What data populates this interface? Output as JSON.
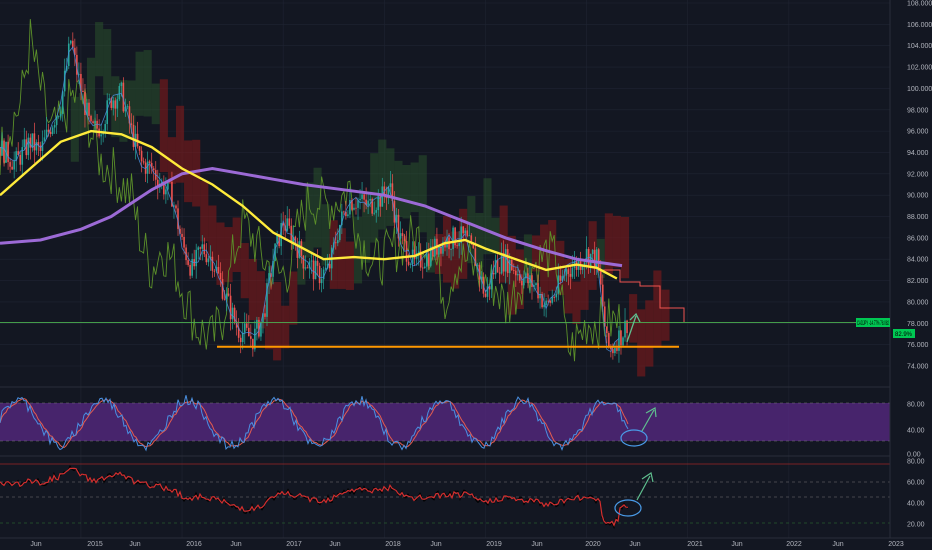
{
  "colors": {
    "background": "#131722",
    "grid": "#1f2432",
    "candle_up": "#26a69a",
    "candle_down": "#ef5350",
    "ma_fast": "#ffeb3b",
    "ma_slow": "#9c6ad6",
    "cloud_red": "#8b1a1a",
    "cloud_green": "#2e5e2e",
    "lagging_line": "#5b8f2a",
    "support_line": "#ff9800",
    "price_line": "#4caf50",
    "stoch_k": "#4a90e2",
    "stoch_d": "#e35b4f",
    "stoch_band": "#5a2a86",
    "rsi_line": "#d32f2f",
    "annotation_arrow": "#5fbf8f",
    "annotation_circle": "#4a9be8",
    "label_green": "#00c853"
  },
  "main_axis": {
    "labels": [
      "108.000",
      "106.000",
      "104.000",
      "102.000",
      "100.000",
      "98.000",
      "96.000",
      "94.000",
      "92.000",
      "90.000",
      "88.000",
      "86.000",
      "84.000",
      "82.000",
      "80.000",
      "78.000",
      "76.000",
      "74.000"
    ]
  },
  "price_labels": {
    "symbol_tag": "CADJPY -14.77% 78.082",
    "secondary_tag": "82.9%"
  },
  "stoch_axis": {
    "labels": [
      "80.00",
      "40.00",
      "0.00"
    ]
  },
  "rsi_axis": {
    "labels": [
      "80.00",
      "60.00",
      "40.00",
      "20.00"
    ]
  },
  "time_axis": {
    "labels": [
      "Jun",
      "2015",
      "Jun",
      "2016",
      "Jun",
      "2017",
      "Jun",
      "2018",
      "Jun",
      "2019",
      "Jun",
      "2020",
      "Jun",
      "2021",
      "Jun",
      "2022",
      "Jun",
      "2023"
    ]
  },
  "chart_data": {
    "type": "line",
    "symbol": "CADJPY",
    "xlim": [
      2014.2,
      2023.0
    ],
    "ylim": [
      73.0,
      108.6
    ],
    "close_series": [
      [
        2014.2,
        94.5
      ],
      [
        2014.35,
        93.0
      ],
      [
        2014.5,
        95.0
      ],
      [
        2014.6,
        94.0
      ],
      [
        2014.7,
        96.5
      ],
      [
        2014.8,
        98.5
      ],
      [
        2014.9,
        104.5
      ],
      [
        2014.95,
        102.0
      ],
      [
        2015.0,
        100.0
      ],
      [
        2015.1,
        96.0
      ],
      [
        2015.2,
        96.5
      ],
      [
        2015.3,
        99.0
      ],
      [
        2015.4,
        99.5
      ],
      [
        2015.5,
        96.0
      ],
      [
        2015.6,
        93.0
      ],
      [
        2015.7,
        92.5
      ],
      [
        2015.8,
        91.0
      ],
      [
        2015.9,
        90.0
      ],
      [
        2016.0,
        85.5
      ],
      [
        2016.1,
        83.0
      ],
      [
        2016.2,
        85.0
      ],
      [
        2016.3,
        84.0
      ],
      [
        2016.45,
        80.0
      ],
      [
        2016.55,
        77.5
      ],
      [
        2016.7,
        76.5
      ],
      [
        2016.8,
        78.5
      ],
      [
        2016.9,
        84.0
      ],
      [
        2017.0,
        87.5
      ],
      [
        2017.1,
        86.0
      ],
      [
        2017.2,
        84.0
      ],
      [
        2017.35,
        82.5
      ],
      [
        2017.45,
        83.0
      ],
      [
        2017.55,
        87.0
      ],
      [
        2017.65,
        89.5
      ],
      [
        2017.75,
        89.5
      ],
      [
        2017.85,
        89.0
      ],
      [
        2018.0,
        90.0
      ],
      [
        2018.05,
        91.0
      ],
      [
        2018.15,
        86.0
      ],
      [
        2018.3,
        83.5
      ],
      [
        2018.45,
        84.5
      ],
      [
        2018.55,
        85.5
      ],
      [
        2018.7,
        86.0
      ],
      [
        2018.8,
        86.0
      ],
      [
        2018.9,
        84.0
      ],
      [
        2019.0,
        80.5
      ],
      [
        2019.1,
        83.5
      ],
      [
        2019.2,
        84.0
      ],
      [
        2019.3,
        83.0
      ],
      [
        2019.4,
        82.0
      ],
      [
        2019.5,
        81.5
      ],
      [
        2019.6,
        79.5
      ],
      [
        2019.7,
        81.0
      ],
      [
        2019.8,
        83.0
      ],
      [
        2019.9,
        83.5
      ],
      [
        2020.0,
        84.5
      ],
      [
        2020.1,
        84.0
      ],
      [
        2020.15,
        80.5
      ],
      [
        2020.2,
        76.0
      ],
      [
        2020.25,
        75.5
      ],
      [
        2020.3,
        76.5
      ],
      [
        2020.35,
        77.0
      ],
      [
        2020.4,
        78.08
      ]
    ],
    "ma_fast": [
      [
        2014.2,
        90.0
      ],
      [
        2014.5,
        92.5
      ],
      [
        2014.8,
        95.0
      ],
      [
        2015.1,
        96.0
      ],
      [
        2015.4,
        95.7
      ],
      [
        2015.7,
        94.5
      ],
      [
        2016.0,
        92.5
      ],
      [
        2016.3,
        91.0
      ],
      [
        2016.6,
        89.0
      ],
      [
        2016.9,
        86.5
      ],
      [
        2017.2,
        85.0
      ],
      [
        2017.4,
        84.0
      ],
      [
        2017.7,
        84.2
      ],
      [
        2018.0,
        84.0
      ],
      [
        2018.3,
        84.3
      ],
      [
        2018.6,
        85.5
      ],
      [
        2018.8,
        85.8
      ],
      [
        2019.0,
        85.0
      ],
      [
        2019.3,
        84.0
      ],
      [
        2019.6,
        83.0
      ],
      [
        2019.9,
        83.5
      ],
      [
        2020.1,
        83.2
      ],
      [
        2020.3,
        82.2
      ]
    ],
    "ma_slow": [
      [
        2014.2,
        85.5
      ],
      [
        2014.6,
        85.8
      ],
      [
        2015.0,
        86.8
      ],
      [
        2015.3,
        88.0
      ],
      [
        2015.7,
        90.5
      ],
      [
        2016.0,
        92.0
      ],
      [
        2016.3,
        92.5
      ],
      [
        2016.6,
        92.0
      ],
      [
        2016.9,
        91.5
      ],
      [
        2017.2,
        91.0
      ],
      [
        2017.6,
        90.5
      ],
      [
        2018.0,
        90.0
      ],
      [
        2018.4,
        89.0
      ],
      [
        2018.8,
        87.5
      ],
      [
        2019.2,
        86.0
      ],
      [
        2019.6,
        84.8
      ],
      [
        2019.9,
        84.0
      ],
      [
        2020.2,
        83.6
      ],
      [
        2020.35,
        83.4
      ]
    ],
    "support_level": 75.8,
    "current_price": 78.082,
    "stoch_range": [
      0,
      100
    ],
    "rsi_range": [
      15,
      82
    ],
    "rsi_bands": [
      70,
      50,
      30
    ]
  }
}
